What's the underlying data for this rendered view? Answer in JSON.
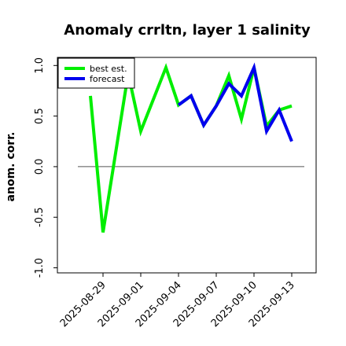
{
  "chart_data": {
    "type": "line",
    "title": "Anomaly crrltn, layer 1 salinity",
    "ylabel": "anom. corr.",
    "xlabel": "",
    "ylim": [
      -1.05,
      1.08
    ],
    "xlim": [
      "2025-08-26",
      "2025-09-14"
    ],
    "grid": false,
    "legend_position": "top-left",
    "yticks": [
      -1.0,
      -0.5,
      0.0,
      0.5,
      1.0
    ],
    "ytick_labels": [
      "-1.0",
      "-0.5",
      "0.0",
      "0.5",
      "1.0"
    ],
    "xticks": [
      "2025-08-29",
      "2025-09-01",
      "2025-09-04",
      "2025-09-07",
      "2025-09-10",
      "2025-09-13"
    ],
    "xtick_colors": [
      "#000000",
      "#000000",
      "#228b22",
      "#000000",
      "#000000",
      "#000000"
    ],
    "reference_line": {
      "y": 0.0,
      "x_start": "2025-08-27",
      "x_end": "2025-09-14",
      "color": "#555555"
    },
    "series": [
      {
        "name": "best est.",
        "color": "#00ee00",
        "x": [
          "2025-08-28",
          "2025-08-29",
          "2025-08-31",
          "2025-09-01",
          "2025-09-03",
          "2025-09-04",
          "2025-09-05",
          "2025-09-06",
          "2025-09-07",
          "2025-09-08",
          "2025-09-09",
          "2025-09-10",
          "2025-09-11",
          "2025-09-12",
          "2025-09-13"
        ],
        "values": [
          0.7,
          -0.65,
          0.92,
          0.35,
          0.98,
          0.61,
          0.7,
          0.41,
          0.6,
          0.9,
          0.47,
          0.98,
          0.4,
          0.56,
          0.6
        ]
      },
      {
        "name": "forecast",
        "color": "#0000ee",
        "x": [
          "2025-09-04",
          "2025-09-05",
          "2025-09-06",
          "2025-09-07",
          "2025-09-08",
          "2025-09-09",
          "2025-09-10",
          "2025-09-11",
          "2025-09-12",
          "2025-09-13"
        ],
        "values": [
          0.61,
          0.7,
          0.41,
          0.6,
          0.82,
          0.7,
          0.98,
          0.35,
          0.56,
          0.25
        ]
      }
    ]
  }
}
